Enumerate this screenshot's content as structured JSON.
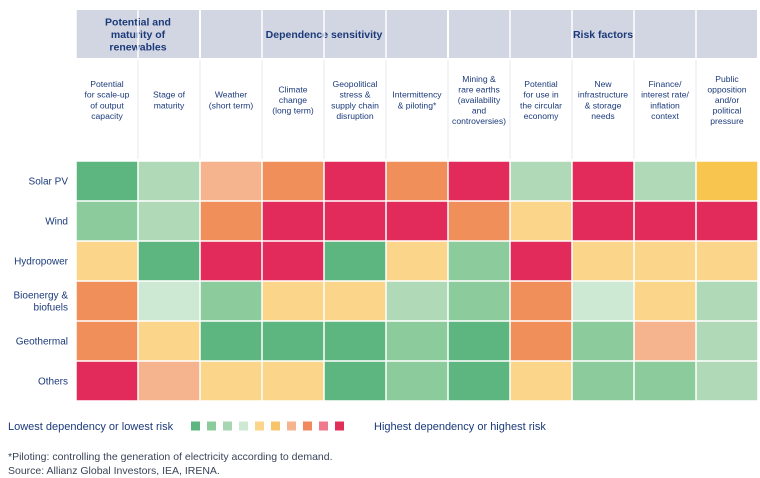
{
  "chart_data": {
    "type": "heatmap",
    "column_groups": [
      {
        "label": [
          "Potential and",
          "maturity of",
          "renewables"
        ],
        "span": 2
      },
      {
        "label": [
          "Dependence sensitivity"
        ],
        "span": 4
      },
      {
        "label": [
          "Risk factors"
        ],
        "span": 5
      }
    ],
    "columns": [
      [
        "Potential",
        "for scale-up",
        "of output",
        "capacity"
      ],
      [
        "Stage of",
        "maturity"
      ],
      [
        "Weather",
        "(short term)"
      ],
      [
        "Climate",
        "change",
        "(long term)"
      ],
      [
        "Geopolitical",
        "stress &",
        "supply chain",
        "disruption"
      ],
      [
        "Intermittency",
        "& piloting*"
      ],
      [
        "Mining &",
        "rare earths",
        "(availability",
        "and",
        "controversies)"
      ],
      [
        "Potential",
        "for use in",
        "the circular",
        "economy"
      ],
      [
        "New",
        "infrastructure",
        "& storage",
        "needs"
      ],
      [
        "Finance/",
        "interest rate/",
        "inflation",
        "context"
      ],
      [
        "Public",
        "opposition",
        "and/or",
        "political",
        "pressure"
      ]
    ],
    "rows": [
      [
        "Solar PV"
      ],
      [
        "Wind"
      ],
      [
        "Hydropower"
      ],
      [
        "Bioenergy &",
        "biofuels"
      ],
      [
        "Geothermal"
      ],
      [
        "Others"
      ]
    ],
    "scale_description": "Ordinal 1-10: 1 = lowest dependency or lowest risk, 10 = highest dependency or highest risk",
    "values": [
      [
        1,
        3,
        7,
        8,
        10,
        8,
        10,
        3,
        10,
        3,
        6
      ],
      [
        2,
        3,
        8,
        10,
        10,
        10,
        8,
        5,
        10,
        10,
        10
      ],
      [
        5,
        1,
        10,
        10,
        1,
        5,
        2,
        10,
        5,
        5,
        5
      ],
      [
        8,
        4,
        2,
        5,
        5,
        3,
        2,
        8,
        4,
        5,
        3
      ],
      [
        8,
        5,
        1,
        1,
        1,
        2,
        1,
        8,
        2,
        7,
        3
      ],
      [
        10,
        7,
        5,
        5,
        1,
        2,
        1,
        5,
        2,
        2,
        3
      ]
    ],
    "legend": {
      "low_label": "Lowest dependency or lowest risk",
      "high_label": "Highest dependency or highest risk",
      "colors": [
        "#5db67f",
        "#8ccb9b",
        "#a8d6b2",
        "#cde8d3",
        "#fbd58a",
        "#f8c46a",
        "#f5b48d",
        "#f08a5c",
        "#ee7a8c",
        "#e0305a"
      ]
    },
    "cell_colors": [
      "#5db67f",
      "#8ccb9b",
      "#b0d9b8",
      "#cde8d3",
      "#fbd58a",
      "#f8c54f",
      "#f5b48d",
      "#f08f5a",
      "#ee7a8c",
      "#e22b5a"
    ]
  },
  "notes": {
    "footnote": "*Piloting: controlling the generation of electricity according to demand.",
    "source": "Source: Allianz Global Investors, IEA, IRENA."
  },
  "colors": {
    "header_bg": "#d2d5e2",
    "text": "#1b3a7a"
  }
}
